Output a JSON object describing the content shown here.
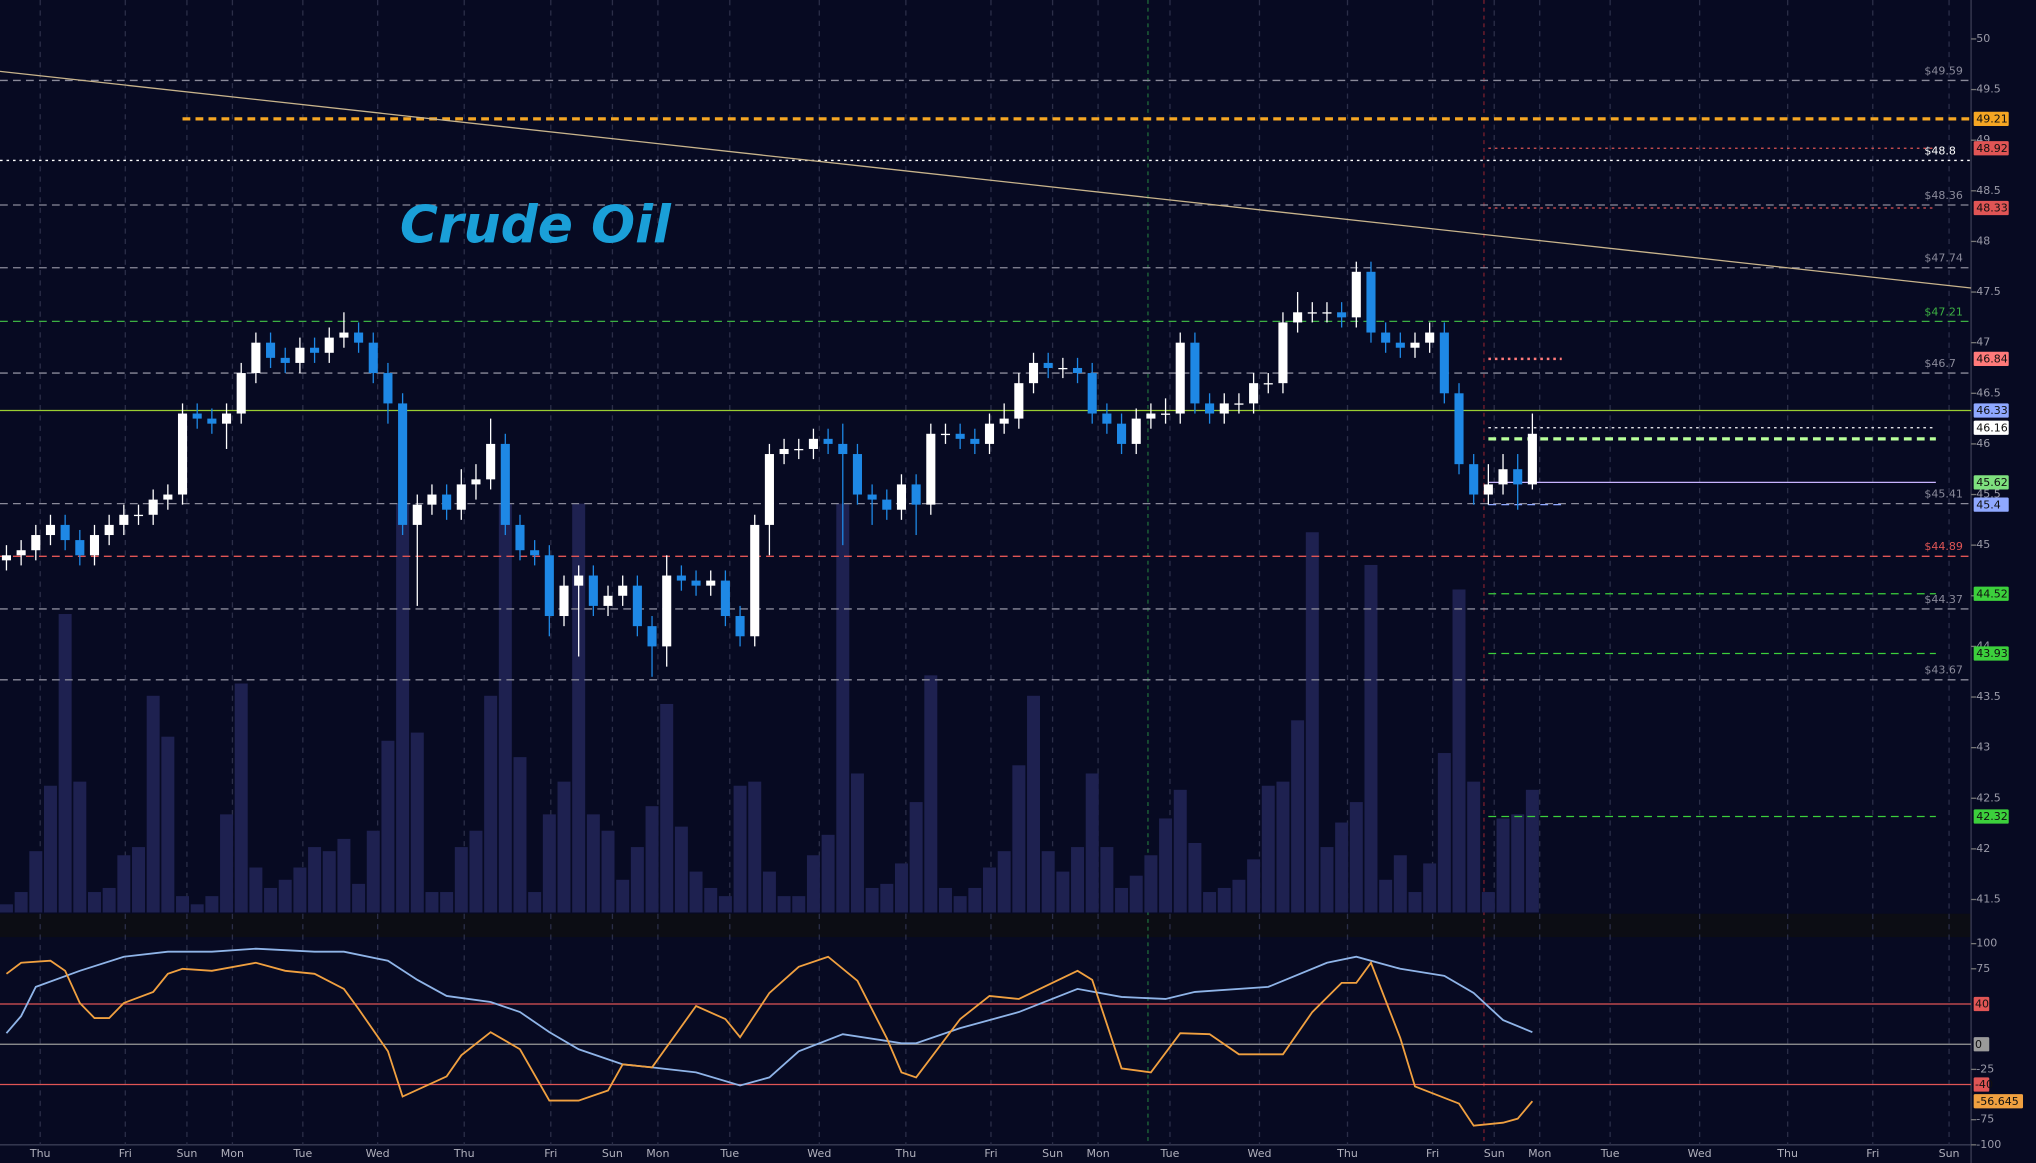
{
  "chart_data": [
    {
      "type": "candlestick",
      "title": "Crude Oil",
      "xlim": [
        -0.44,
        133.9
      ],
      "ylim": [
        41.5,
        50
      ],
      "yticks": [
        50,
        49.5,
        49,
        48.5,
        48,
        47.5,
        47,
        46.5,
        46,
        45.5,
        45,
        44.5,
        44,
        43.5,
        43,
        42.5,
        42,
        41.5
      ],
      "up_color": "#ffffff",
      "down_color": "#1e88e5",
      "volume_color": "#1e2150",
      "open": [
        44.85,
        44.9,
        44.95,
        45.1,
        45.2,
        45.05,
        44.9,
        45.1,
        45.2,
        45.3,
        45.3,
        45.45,
        45.5,
        46.3,
        46.25,
        46.2,
        46.3,
        46.7,
        47.0,
        46.85,
        46.8,
        46.95,
        46.9,
        47.05,
        47.1,
        47.0,
        46.7,
        46.4,
        45.2,
        45.4,
        45.5,
        45.35,
        45.6,
        45.65,
        46.0,
        45.2,
        44.95,
        44.9,
        44.3,
        44.6,
        44.7,
        44.4,
        44.5,
        44.6,
        44.2,
        44.0,
        44.7,
        44.65,
        44.6,
        44.65,
        44.3,
        44.1,
        45.2,
        45.9,
        45.95,
        45.95,
        46.05,
        46.0,
        45.9,
        45.5,
        45.45,
        45.35,
        45.6,
        45.4,
        46.1,
        46.1,
        46.05,
        46.0,
        46.2,
        46.25,
        46.6,
        46.8,
        46.75,
        46.75,
        46.7,
        46.3,
        46.2,
        46.0,
        46.25,
        46.3,
        46.3,
        47.0,
        46.4,
        46.3,
        46.4,
        46.4,
        46.6,
        46.6,
        47.2,
        47.3,
        47.3,
        47.3,
        47.25,
        47.7,
        47.1,
        47.0,
        46.95,
        47.0,
        47.1,
        46.5,
        45.8,
        45.5,
        45.6,
        45.75,
        45.6
      ],
      "high": [
        45.0,
        45.05,
        45.2,
        45.3,
        45.3,
        45.15,
        45.2,
        45.3,
        45.4,
        45.4,
        45.55,
        45.6,
        46.4,
        46.4,
        46.35,
        46.4,
        46.8,
        47.1,
        47.1,
        46.95,
        47.05,
        47.05,
        47.15,
        47.3,
        47.2,
        47.1,
        46.8,
        46.5,
        45.5,
        45.6,
        45.6,
        45.75,
        45.8,
        46.25,
        46.1,
        45.3,
        45.05,
        45.0,
        44.7,
        44.8,
        44.8,
        44.6,
        44.7,
        44.7,
        44.3,
        44.9,
        44.8,
        44.75,
        44.75,
        44.75,
        44.4,
        45.3,
        46.0,
        46.05,
        46.05,
        46.15,
        46.15,
        46.2,
        46.0,
        45.6,
        45.55,
        45.7,
        45.7,
        46.2,
        46.2,
        46.2,
        46.15,
        46.3,
        46.4,
        46.7,
        46.9,
        46.9,
        46.85,
        46.85,
        46.8,
        46.4,
        46.3,
        46.35,
        46.4,
        46.45,
        47.1,
        47.1,
        46.5,
        46.5,
        46.5,
        46.7,
        46.7,
        47.3,
        47.5,
        47.4,
        47.4,
        47.4,
        47.8,
        47.8,
        47.2,
        47.1,
        47.1,
        47.2,
        47.2,
        46.6,
        45.9,
        45.8,
        45.9,
        45.9,
        46.3
      ],
      "low": [
        44.75,
        44.8,
        44.85,
        45.0,
        44.95,
        44.8,
        44.8,
        45.0,
        45.1,
        45.2,
        45.2,
        45.35,
        45.4,
        46.15,
        46.1,
        45.95,
        46.2,
        46.6,
        46.75,
        46.7,
        46.7,
        46.8,
        46.8,
        46.95,
        46.9,
        46.6,
        46.2,
        45.1,
        44.4,
        45.3,
        45.25,
        45.25,
        45.45,
        45.55,
        45.1,
        44.85,
        44.8,
        44.1,
        44.2,
        43.9,
        44.3,
        44.3,
        44.4,
        44.1,
        43.7,
        43.8,
        44.55,
        44.5,
        44.5,
        44.2,
        44.0,
        44.0,
        44.9,
        45.8,
        45.85,
        45.85,
        45.9,
        45.0,
        45.4,
        45.2,
        45.25,
        45.25,
        45.1,
        45.3,
        46.0,
        45.95,
        45.9,
        45.9,
        46.1,
        46.15,
        46.5,
        46.65,
        46.65,
        46.6,
        46.2,
        46.1,
        45.9,
        45.9,
        46.15,
        46.2,
        46.2,
        46.3,
        46.2,
        46.2,
        46.3,
        46.3,
        46.5,
        46.5,
        47.1,
        47.2,
        47.2,
        47.15,
        47.15,
        47.0,
        46.9,
        46.85,
        46.85,
        46.9,
        46.4,
        45.7,
        45.4,
        45.4,
        45.5,
        45.35,
        45.55
      ],
      "close": [
        44.9,
        44.95,
        45.1,
        45.2,
        45.05,
        44.9,
        45.1,
        45.2,
        45.3,
        45.3,
        45.45,
        45.5,
        46.3,
        46.25,
        46.2,
        46.3,
        46.7,
        47.0,
        46.85,
        46.8,
        46.95,
        46.9,
        47.05,
        47.1,
        47.0,
        46.7,
        46.4,
        45.2,
        45.4,
        45.5,
        45.35,
        45.6,
        45.65,
        46.0,
        45.2,
        44.95,
        44.9,
        44.3,
        44.6,
        44.7,
        44.4,
        44.5,
        44.6,
        44.2,
        44.0,
        44.7,
        44.65,
        44.6,
        44.65,
        44.3,
        44.1,
        45.2,
        45.9,
        45.95,
        45.95,
        46.05,
        46.0,
        45.9,
        45.5,
        45.45,
        45.35,
        45.6,
        45.4,
        46.1,
        46.1,
        46.05,
        46.0,
        46.2,
        46.25,
        46.6,
        46.8,
        46.75,
        46.75,
        46.7,
        46.3,
        46.2,
        46.0,
        46.25,
        46.3,
        46.3,
        47.0,
        46.4,
        46.3,
        46.4,
        46.4,
        46.6,
        46.6,
        47.2,
        47.3,
        47.3,
        47.3,
        47.25,
        47.7,
        47.1,
        47.0,
        46.95,
        47.0,
        47.1,
        46.5,
        45.8,
        45.5,
        45.6,
        45.75,
        45.6,
        46.1
      ],
      "volume": [
        2,
        5,
        15,
        31,
        73,
        32,
        5,
        6,
        14,
        16,
        53,
        43,
        4,
        2,
        4,
        24,
        56,
        11,
        6,
        8,
        11,
        16,
        15,
        18,
        7,
        20,
        42,
        100,
        44,
        5,
        5,
        16,
        20,
        53,
        100,
        38,
        5,
        24,
        32,
        100,
        24,
        20,
        8,
        16,
        26,
        51,
        21,
        10,
        6,
        4,
        31,
        32,
        10,
        4,
        4,
        14,
        19,
        100,
        34,
        6,
        7,
        12,
        27,
        58,
        6,
        4,
        6,
        11,
        15,
        36,
        53,
        15,
        10,
        16,
        34,
        16,
        6,
        9,
        14,
        23,
        30,
        17,
        5,
        6,
        8,
        13,
        31,
        32,
        47,
        93,
        16,
        22,
        27,
        85,
        8,
        14,
        5,
        12,
        39,
        79,
        32,
        5,
        23,
        24,
        30
      ],
      "trendline": {
        "x": [
          -0.44,
          133.9
        ],
        "values": [
          49.68,
          47.54
        ],
        "color": "#c8b48c"
      },
      "vlines": [
        {
          "x": 77.8,
          "color": "#1f6b3a"
        },
        {
          "x": 100.7,
          "color": "#7a1f2e"
        }
      ],
      "levels": [
        {
          "value": 49.59,
          "label": "$49.59",
          "color": "#8a8a9a",
          "style": "dashed",
          "boxed": false
        },
        {
          "value": 49.21,
          "color": "#f5a623",
          "style": "dashed",
          "boxed": true,
          "start": 12,
          "width": 2.5
        },
        {
          "value": 48.8,
          "label": "$48.8",
          "color": "#ffffff",
          "style": "dotted",
          "boxed": false
        },
        {
          "value": 48.92,
          "color": "#e05555",
          "style": "dotted",
          "boxed": true,
          "start": 101,
          "end": 131.5
        },
        {
          "value": 48.36,
          "label": "$48.36",
          "color": "#8a8a9a",
          "style": "dashed",
          "boxed": false
        },
        {
          "value": 48.33,
          "color": "#e05555",
          "style": "dotted",
          "boxed": true,
          "start": 101,
          "end": 131.5
        },
        {
          "value": 47.74,
          "label": "$47.74",
          "color": "#8a8a9a",
          "style": "dashed",
          "boxed": false
        },
        {
          "value": 47.21,
          "label": "$47.21",
          "color": "#3cb043",
          "style": "dashed",
          "boxed": false
        },
        {
          "value": 46.7,
          "label": "$46.7",
          "color": "#8a8a9a",
          "style": "dashed",
          "boxed": false
        },
        {
          "value": 46.84,
          "color": "#ff7a7a",
          "style": "dotted",
          "boxed": true,
          "start": 101,
          "end": 106,
          "width": 2
        },
        {
          "value": 46.33,
          "color": "#8fa8ff",
          "line_color": "#9acd32",
          "style": "solid",
          "boxed": true
        },
        {
          "value": 46.16,
          "color": "#ffffff",
          "style": "dotted",
          "boxed": true,
          "start": 101,
          "end": 131.5
        },
        {
          "value": 46.05,
          "color": "#b8ff9a",
          "style": "dashed",
          "boxed": false,
          "start": 101,
          "end": 131.5,
          "width": 2.5
        },
        {
          "value": 45.62,
          "color": "#7ee07e",
          "line_color": "#c8b4ff",
          "style": "solid",
          "boxed": true,
          "start": 101,
          "end": 131.5
        },
        {
          "value": 45.41,
          "label": "$45.41",
          "color": "#8a8a9a",
          "style": "dashed",
          "boxed": false
        },
        {
          "value": 45.4,
          "color": "#8fa8ff",
          "style": "dashed",
          "boxed": true,
          "start": 101,
          "end": 106
        },
        {
          "value": 44.89,
          "label": "$44.89",
          "color": "#e05555",
          "style": "dashed",
          "boxed": false
        },
        {
          "value": 44.37,
          "label": "$44.37",
          "color": "#8a8a9a",
          "style": "dashed",
          "boxed": false
        },
        {
          "value": 44.52,
          "color": "#3cd03c",
          "style": "dashed",
          "boxed": true,
          "start": 101,
          "end": 131.5
        },
        {
          "value": 43.67,
          "label": "$43.67",
          "color": "#8a8a9a",
          "style": "dashed",
          "boxed": false
        },
        {
          "value": 43.93,
          "color": "#3cd03c",
          "style": "dashed",
          "boxed": true,
          "start": 101,
          "end": 131.5
        },
        {
          "value": 42.32,
          "color": "#3cd03c",
          "style": "dashed",
          "boxed": true,
          "start": 101,
          "end": 131.5
        }
      ]
    },
    {
      "type": "line",
      "xlim": [
        -0.44,
        133.9
      ],
      "ylim": [
        -100,
        100
      ],
      "yticks": [
        100,
        75,
        -25,
        -75,
        -100
      ],
      "x_labels": {
        "x": [
          2.3,
          8.1,
          12.3,
          15.4,
          20.2,
          25.3,
          31.2,
          37.1,
          41.3,
          44.4,
          49.3,
          55.4,
          61.3,
          67.1,
          71.3,
          74.4,
          79.3,
          85.4,
          91.4,
          97.2,
          101.4,
          104.5,
          109.3,
          115.4,
          121.4,
          127.2,
          132.4
        ],
        "labels": [
          "Thu",
          "Fri",
          "Sun",
          "Mon",
          "Tue",
          "Wed",
          "Thu",
          "Fri",
          "Sun",
          "Mon",
          "Tue",
          "Wed",
          "Thu",
          "Fri",
          "Sun",
          "Mon",
          "Tue",
          "Wed",
          "Thu",
          "Fri",
          "Sun",
          "Mon",
          "Tue",
          "Wed",
          "Thu",
          "Fri",
          "Sun"
        ]
      },
      "levels": [
        {
          "value": 40,
          "color": "#e05555"
        },
        {
          "value": -40,
          "color": "#e05555"
        },
        {
          "value": 0,
          "color": "#9a9a9a"
        }
      ],
      "series": [
        {
          "color": "#8fb4e8",
          "x": [
            0,
            1,
            2,
            5,
            8,
            11,
            14,
            17,
            21,
            23,
            26,
            28,
            30,
            33,
            35,
            37,
            39,
            42,
            44,
            47,
            50,
            52,
            54,
            57,
            61,
            62,
            65,
            69,
            73,
            76,
            79,
            81,
            86,
            90,
            92,
            95,
            98,
            100,
            102,
            104
          ],
          "values": [
            11,
            28,
            57,
            73,
            87,
            92,
            92,
            95,
            92,
            92,
            83,
            64,
            48,
            42,
            32,
            12,
            -5,
            -20,
            -23,
            -28,
            -41,
            -33,
            -7,
            10,
            1,
            1,
            16,
            32,
            55,
            47,
            45,
            52,
            57,
            81,
            87,
            75,
            68,
            51,
            24,
            12
          ]
        },
        {
          "color": "#f0a040",
          "last_box": true,
          "x": [
            0,
            1,
            3,
            4,
            5,
            6,
            7,
            8,
            10,
            11,
            12,
            14,
            17,
            19,
            21,
            23,
            24,
            26,
            27,
            30,
            31,
            33,
            35,
            37,
            39,
            41,
            42,
            44,
            47,
            49,
            50,
            52,
            54,
            56,
            58,
            60,
            61,
            62,
            65,
            67,
            69,
            73,
            74,
            76,
            78,
            80,
            82,
            84,
            87,
            89,
            91,
            92,
            93,
            95,
            96,
            99,
            100,
            102,
            103,
            104
          ],
          "values": [
            70,
            81,
            83,
            73,
            41,
            26,
            26,
            41,
            52,
            70,
            75,
            73,
            81,
            73,
            70,
            55,
            35,
            -7,
            -52,
            -32,
            -11,
            12,
            -5,
            -56,
            -56,
            -46,
            -20,
            -23,
            38,
            25,
            7,
            51,
            77,
            87,
            63,
            6,
            -28,
            -33,
            25,
            48,
            45,
            73,
            64,
            -24,
            -28,
            11,
            10,
            -10,
            -10,
            32,
            61,
            61,
            81,
            6,
            -42,
            -59,
            -81,
            -78,
            -74,
            -56.645
          ]
        }
      ]
    }
  ]
}
